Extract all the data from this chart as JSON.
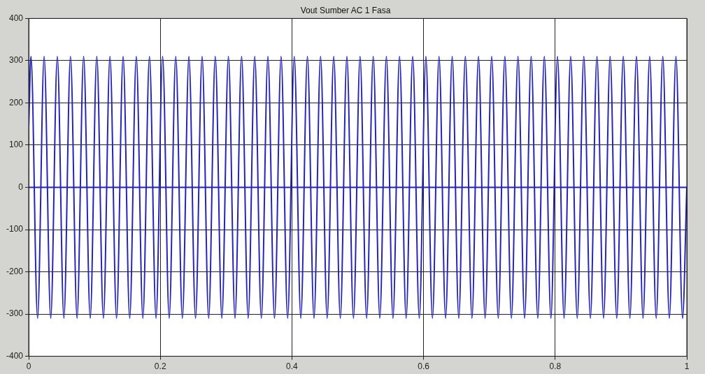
{
  "chart_data": {
    "type": "line",
    "title": "Vout Sumber AC 1 Fasa",
    "xlim": [
      0,
      1
    ],
    "xticks": [
      0,
      0.2,
      0.4,
      0.6,
      0.8,
      1
    ],
    "ylim": [
      -400,
      400
    ],
    "yticks": [
      -400,
      -300,
      -200,
      -100,
      0,
      100,
      200,
      300,
      400
    ],
    "grid": true,
    "legend": false,
    "marker": "none",
    "series": [
      {
        "color": "#2424b8",
        "x": [
          0,
          0.0035,
          0.0135,
          0.0235,
          0.0335,
          0.0435,
          0.0535,
          0.0635,
          0.0735,
          0.0835,
          0.0935,
          0.1035,
          0.1135,
          0.1235,
          0.1335,
          0.1435,
          0.1535,
          0.1635,
          0.1735,
          0.1835,
          0.1935,
          0.2035,
          0.2135,
          0.2235,
          0.2335,
          0.2435,
          0.2535,
          0.2635,
          0.2735,
          0.2835,
          0.2935,
          0.3035,
          0.3135,
          0.3235,
          0.3335,
          0.3435,
          0.3535,
          0.3635,
          0.3735,
          0.3835,
          0.3935,
          0.4035,
          0.4135,
          0.4235,
          0.4335,
          0.4435,
          0.4535,
          0.4635,
          0.4735,
          0.4835,
          0.4935,
          0.5035,
          0.5135,
          0.5235,
          0.5335,
          0.5435,
          0.5535,
          0.5635,
          0.5735,
          0.5835,
          0.5935,
          0.6035,
          0.6135,
          0.6235,
          0.6335,
          0.6435,
          0.6535,
          0.6635,
          0.6735,
          0.6835,
          0.6935,
          0.7035,
          0.7135,
          0.7235,
          0.7335,
          0.7435,
          0.7535,
          0.7635,
          0.7735,
          0.7835,
          0.7935,
          0.8035,
          0.8135,
          0.8235,
          0.8335,
          0.8435,
          0.8535,
          0.8635,
          0.8735,
          0.8835,
          0.8935,
          0.9035,
          0.9135,
          0.9235,
          0.9335,
          0.9435,
          0.9535,
          0.9635,
          0.9735,
          0.9835,
          0.9935,
          1
        ],
        "values": [
          140,
          310,
          -310,
          310,
          -310,
          310,
          -310,
          310,
          -310,
          310,
          -310,
          310,
          -310,
          310,
          -310,
          310,
          -310,
          310,
          -310,
          310,
          -310,
          310,
          -310,
          310,
          -310,
          310,
          -310,
          310,
          -310,
          310,
          -310,
          310,
          -310,
          310,
          -310,
          310,
          -310,
          310,
          -310,
          310,
          -310,
          310,
          -310,
          310,
          -310,
          310,
          -310,
          310,
          -310,
          310,
          -310,
          310,
          -310,
          310,
          -310,
          310,
          -310,
          310,
          -310,
          310,
          -310,
          310,
          -310,
          310,
          -310,
          310,
          -310,
          310,
          -310,
          310,
          -310,
          310,
          -310,
          310,
          -310,
          310,
          -310,
          310,
          -310,
          310,
          -310,
          310,
          -310,
          310,
          -310,
          310,
          -310,
          310,
          -310,
          310,
          -310,
          310,
          -310,
          310,
          -310,
          310,
          -310,
          310,
          -310,
          310,
          -310,
          0
        ]
      },
      {
        "color": "#2424b8",
        "x": [
          0,
          1
        ],
        "values": [
          0,
          0
        ]
      }
    ]
  }
}
